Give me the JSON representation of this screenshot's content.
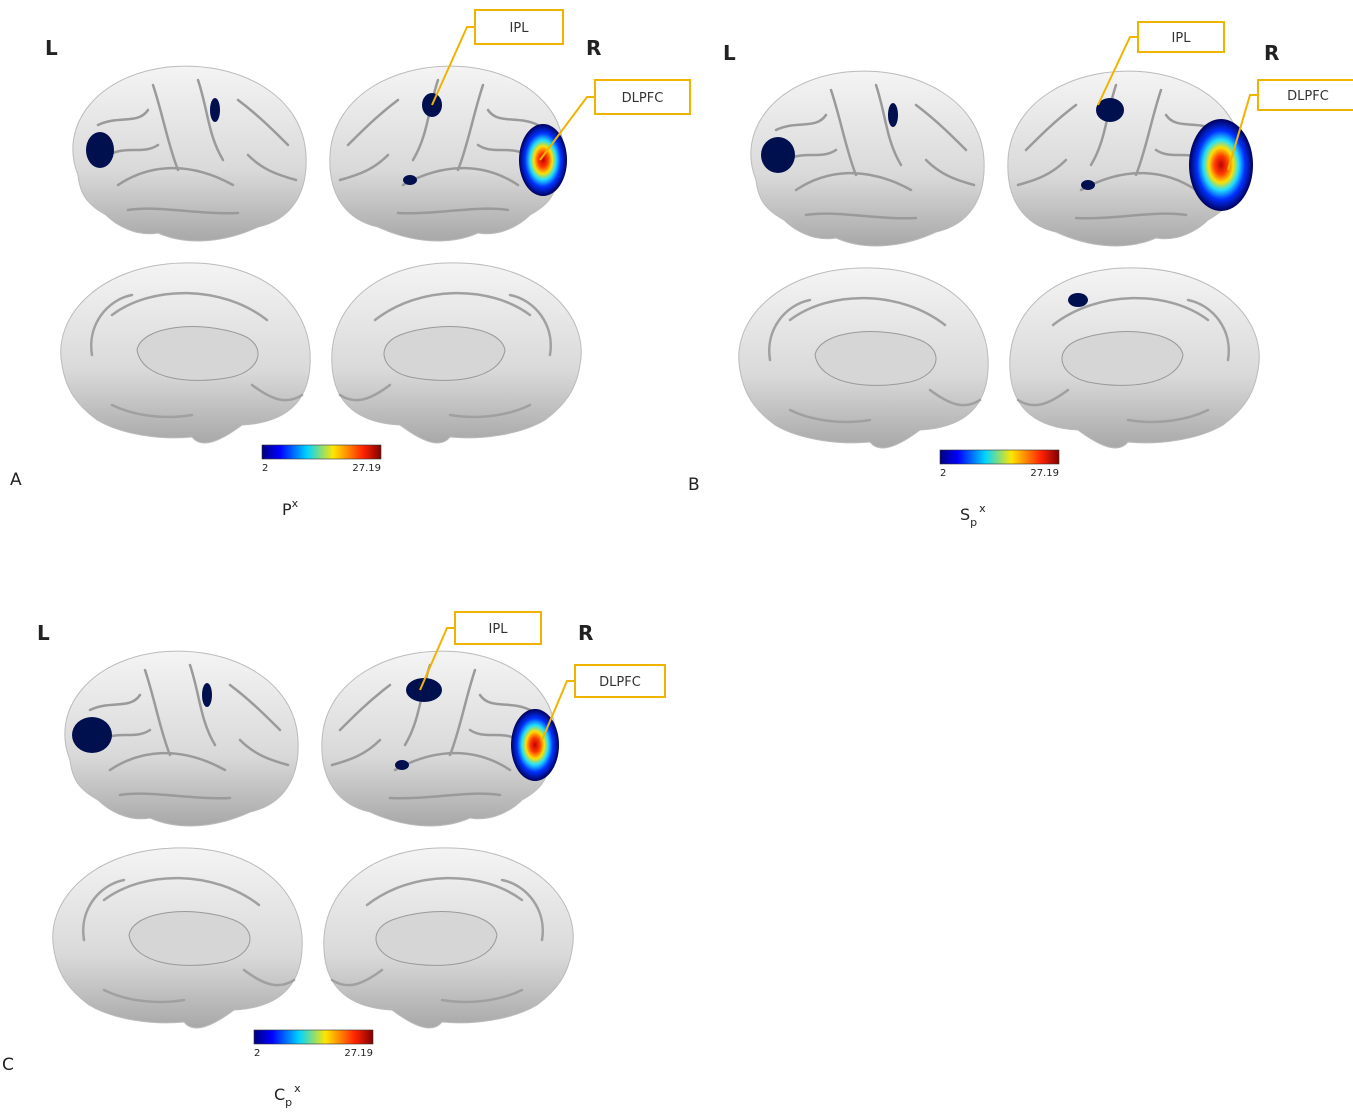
{
  "panels": [
    {
      "letter": "A",
      "left_label": "L",
      "right_label": "R",
      "callouts": [
        "IPL",
        "DLPFC"
      ],
      "colorbar": {
        "min": 2,
        "max": 27.19
      },
      "caption": {
        "base": "P",
        "sup": "x"
      }
    },
    {
      "letter": "B",
      "left_label": "L",
      "right_label": "R",
      "callouts": [
        "IPL",
        "DLPFC"
      ],
      "colorbar": {
        "min": 2,
        "max": 27.19
      },
      "caption": {
        "base": "S",
        "sub": "p",
        "sup": "x"
      }
    },
    {
      "letter": "C",
      "left_label": "L",
      "right_label": "R",
      "callouts": [
        "IPL",
        "DLPFC"
      ],
      "colorbar": {
        "min": 2,
        "max": 27.19
      },
      "caption": {
        "base": "C",
        "sub": "p",
        "sup": "x"
      }
    }
  ]
}
